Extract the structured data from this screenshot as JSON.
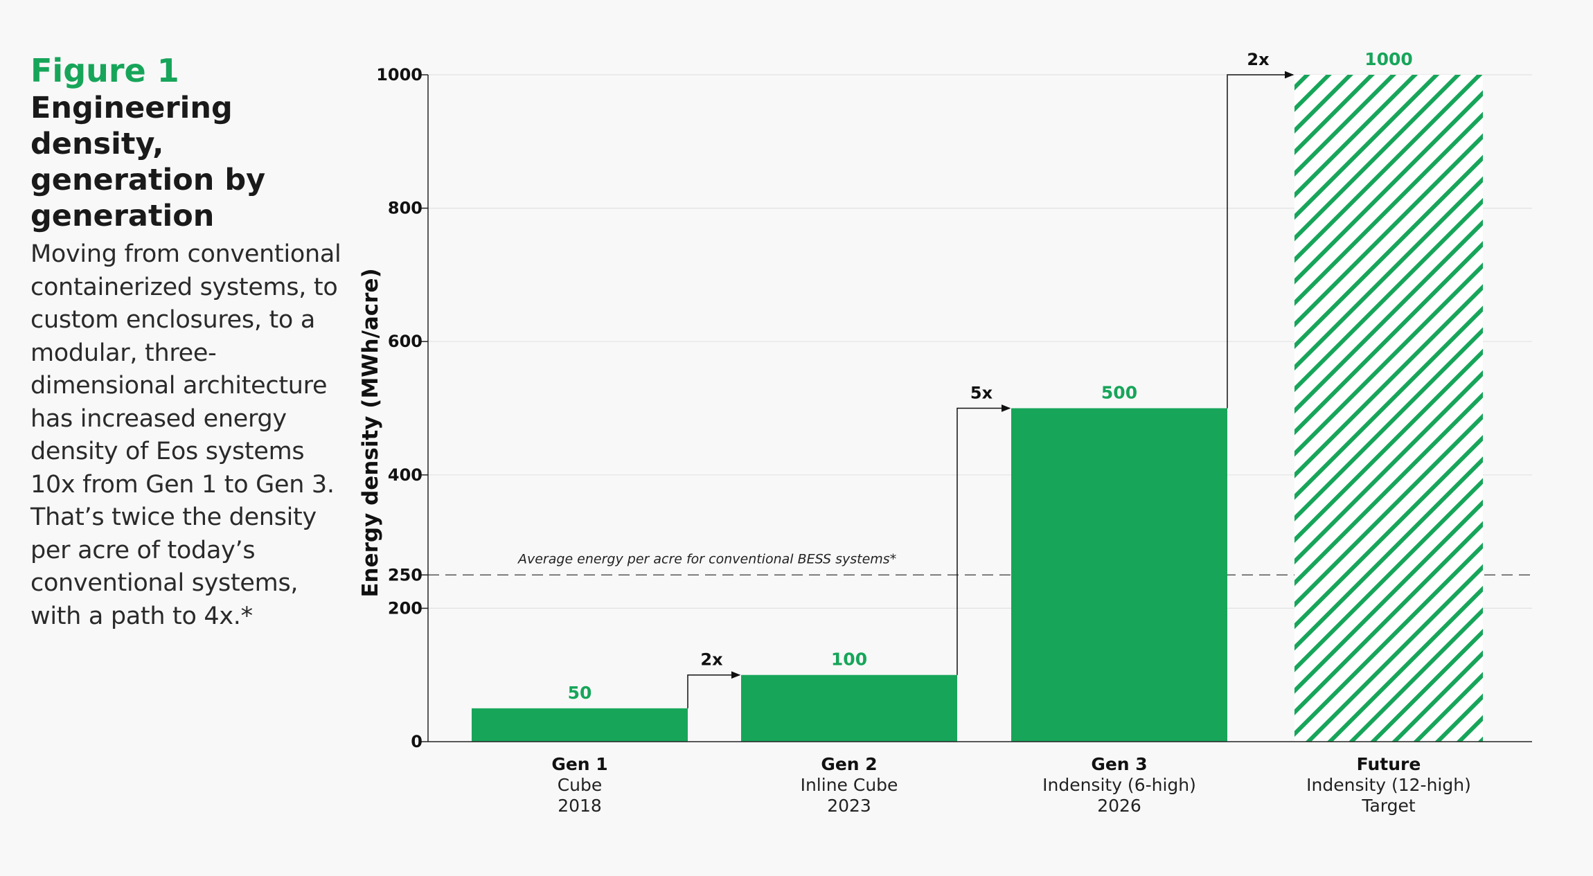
{
  "figure": {
    "label": "Figure 1",
    "title": "Engineering density, generation by generation",
    "description": "Moving from conventional containerized systems, to custom enclosures, to a modular, three-dimensional architecture has increased energy density of Eos systems 10x from Gen 1 to Gen 3. That’s twice the density per acre of today’s conventional systems, with a path to 4x.*"
  },
  "chart_data": {
    "type": "bar",
    "ylabel": "Energy density (MWh/acre)",
    "ylim": [
      0,
      1000
    ],
    "yticks": [
      0,
      200,
      250,
      400,
      600,
      800,
      1000
    ],
    "grid": true,
    "categories": [
      {
        "name": "Gen 1",
        "line2": "Cube",
        "line3": "2018"
      },
      {
        "name": "Gen 2",
        "line2": "Inline Cube",
        "line3": "2023"
      },
      {
        "name": "Gen 3",
        "line2": "Indensity (6-high)",
        "line3": "2026"
      },
      {
        "name": "Future",
        "line2": "Indensity (12-high)",
        "line3": "Target"
      }
    ],
    "values": [
      50,
      100,
      500,
      1000
    ],
    "value_labels": [
      "50",
      "100",
      "500",
      "1000"
    ],
    "hatched": [
      false,
      false,
      false,
      true
    ],
    "multipliers": [
      "2x",
      "5x",
      "2x"
    ],
    "reference_line": {
      "value": 250,
      "label": "Average energy per acre for conventional BESS systems*"
    },
    "colors": {
      "bar": "#17a55a",
      "value_label": "#17a55a",
      "axis": "#222222",
      "grid": "#e2e2e2"
    }
  }
}
